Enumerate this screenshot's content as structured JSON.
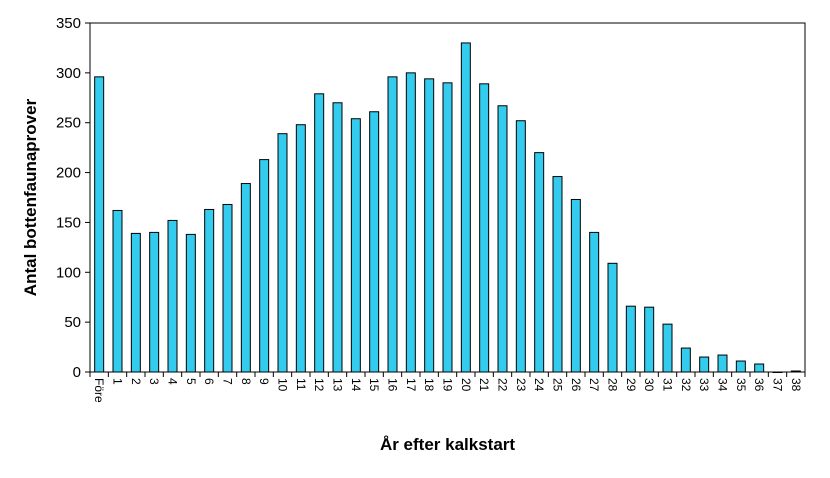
{
  "chart_data": {
    "type": "bar",
    "title": "",
    "xlabel": "År efter kalkstart",
    "ylabel": "Antal bottenfaunaprover",
    "ylim": [
      0,
      350
    ],
    "yticks": [
      0,
      50,
      100,
      150,
      200,
      250,
      300,
      350
    ],
    "grid": false,
    "legend": "none",
    "categories": [
      "Före",
      "1",
      "2",
      "3",
      "4",
      "5",
      "6",
      "7",
      "8",
      "9",
      "10",
      "11",
      "12",
      "13",
      "14",
      "15",
      "16",
      "17",
      "18",
      "19",
      "20",
      "21",
      "22",
      "23",
      "24",
      "25",
      "26",
      "27",
      "28",
      "29",
      "30",
      "31",
      "32",
      "33",
      "34",
      "35",
      "36",
      "37",
      "38"
    ],
    "values": [
      296,
      162,
      139,
      140,
      152,
      138,
      163,
      168,
      189,
      213,
      239,
      248,
      279,
      270,
      254,
      261,
      296,
      300,
      294,
      290,
      330,
      289,
      267,
      252,
      220,
      196,
      173,
      140,
      109,
      66,
      65,
      48,
      24,
      15,
      17,
      11,
      8,
      0,
      1
    ],
    "colors": {
      "bar_fill": "#33ccee",
      "bar_stroke": "#000000",
      "axis": "#000000"
    }
  }
}
